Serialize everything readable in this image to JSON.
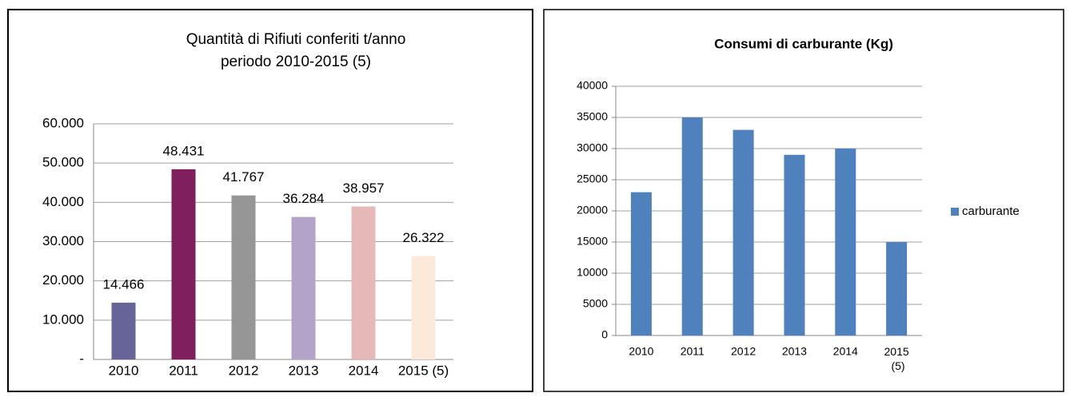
{
  "chart_data": [
    {
      "type": "bar",
      "title": [
        "Quantità di Rifiuti conferiti  t/anno",
        "periodo  2010-2015 (5)"
      ],
      "categories": [
        "2010",
        "2011",
        "2012",
        "2013",
        "2014",
        "2015 (5)"
      ],
      "values": [
        14466,
        48431,
        41767,
        36284,
        38957,
        26322
      ],
      "value_labels": [
        "14.466",
        "48.431",
        "41.767",
        "36.284",
        "38.957",
        "26.322"
      ],
      "colors": [
        "#67649a",
        "#7f1f5e",
        "#969696",
        "#b3a3c8",
        "#e6b9b8",
        "#fde9d9"
      ],
      "ylim": [
        0,
        60000
      ],
      "yticks": [
        {
          "value": 0,
          "label": "-"
        },
        {
          "value": 10000,
          "label": "10.000"
        },
        {
          "value": 20000,
          "label": "20.000"
        },
        {
          "value": 30000,
          "label": "30.000"
        },
        {
          "value": 40000,
          "label": "40.000"
        },
        {
          "value": 50000,
          "label": "50.000"
        },
        {
          "value": 60000,
          "label": "60.000"
        }
      ],
      "grid": true
    },
    {
      "type": "bar",
      "title": "Consumi di carburante (Kg)",
      "categories": [
        "2010",
        "2011",
        "2012",
        "2013",
        "2014",
        "2015 (5)"
      ],
      "series": [
        {
          "name": "carburante",
          "color": "#4f81bd",
          "values": [
            23000,
            35000,
            33000,
            29000,
            30000,
            15000
          ]
        }
      ],
      "ylim": [
        0,
        40000
      ],
      "yticks": [
        0,
        5000,
        10000,
        15000,
        20000,
        25000,
        30000,
        35000,
        40000
      ],
      "grid": true,
      "legend": "right"
    }
  ]
}
